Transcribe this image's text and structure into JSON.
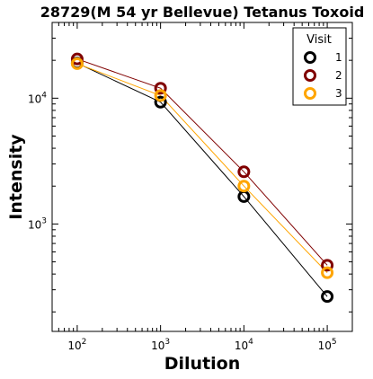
{
  "chart_data": {
    "type": "line",
    "title": "28729(M 54 yr Bellevue) Tetanus Toxoid",
    "xlabel": "Dilution",
    "ylabel": "Intensity",
    "x_scale": "log",
    "y_scale": "log",
    "xlim": [
      50,
      200000
    ],
    "ylim": [
      140,
      40000
    ],
    "x": [
      100,
      1000,
      10000,
      100000
    ],
    "x_ticks": [
      {
        "value": 100,
        "base": "10",
        "exp": "2"
      },
      {
        "value": 1000,
        "base": "10",
        "exp": "3"
      },
      {
        "value": 10000,
        "base": "10",
        "exp": "4"
      },
      {
        "value": 100000,
        "base": "10",
        "exp": "5"
      }
    ],
    "y_ticks": [
      {
        "value": 1000,
        "base": "10",
        "exp": "3"
      },
      {
        "value": 10000,
        "base": "10",
        "exp": "4"
      }
    ],
    "legend": {
      "title": "Visit",
      "position": "top-right"
    },
    "series": [
      {
        "name": "1",
        "color": "#000000",
        "values": [
          19000,
          9300,
          1650,
          265
        ]
      },
      {
        "name": "2",
        "color": "#800000",
        "values": [
          20500,
          12000,
          2600,
          470
        ]
      },
      {
        "name": "3",
        "color": "#FFA500",
        "values": [
          18800,
          10500,
          2000,
          410
        ]
      }
    ],
    "grid": false
  }
}
